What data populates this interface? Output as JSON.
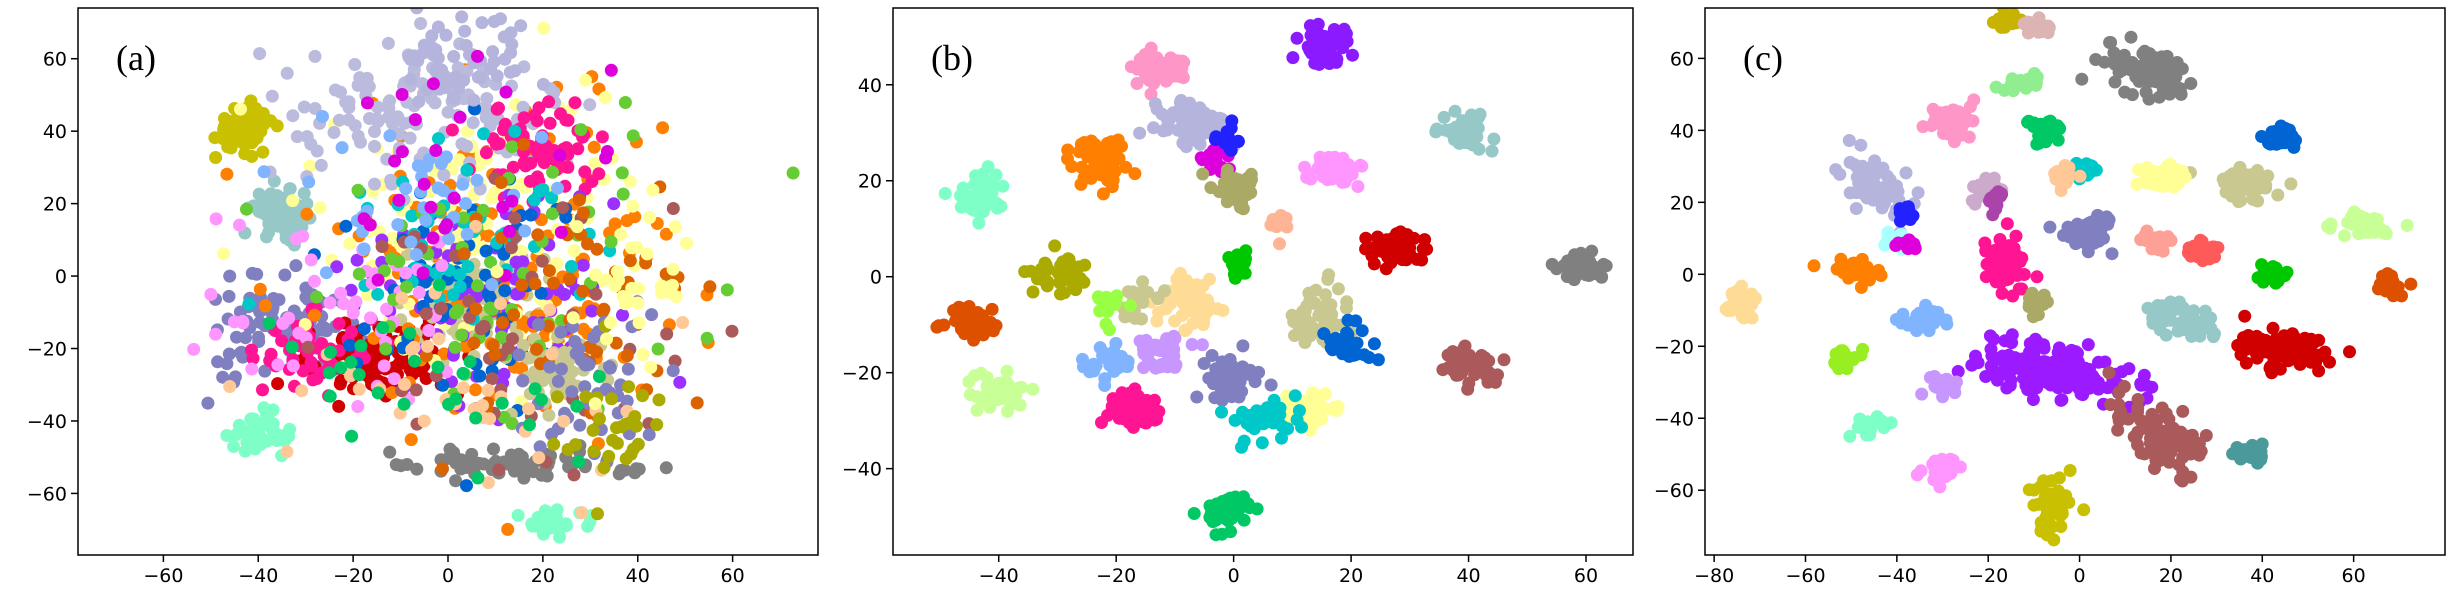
{
  "chart_data": [
    {
      "type": "scatter",
      "panel_label": "(a)",
      "title": "",
      "xlabel": "",
      "ylabel": "",
      "xlim": [
        -78,
        78
      ],
      "ylim": [
        -77,
        74
      ],
      "xticks": [
        -60,
        -40,
        -20,
        0,
        20,
        40,
        60
      ],
      "yticks": [
        -60,
        -40,
        -20,
        0,
        20,
        40,
        60
      ],
      "grid": false,
      "legend": "none",
      "clusters": [
        {
          "color": "#c8c000",
          "cx": -43,
          "cy": 41,
          "sx": 3,
          "sy": 3,
          "n": 90
        },
        {
          "color": "#96c8c8",
          "cx": -35,
          "cy": 18,
          "sx": 3,
          "sy": 3,
          "n": 70
        },
        {
          "color": "#7fffc8",
          "cx": -40,
          "cy": -44,
          "sx": 3,
          "sy": 3,
          "n": 40
        },
        {
          "color": "#8080c0",
          "cx": -35,
          "cy": -15,
          "sx": 8,
          "sy": 7,
          "n": 90
        },
        {
          "color": "#d00000",
          "cx": -15,
          "cy": -23,
          "sx": 9,
          "sy": 5,
          "n": 100
        },
        {
          "color": "#ff1493",
          "cx": -28,
          "cy": -20,
          "sx": 6,
          "sy": 5,
          "n": 50
        },
        {
          "color": "#c8c890",
          "cx": 5,
          "cy": -7,
          "sx": 7,
          "sy": 7,
          "n": 100
        },
        {
          "color": "#ff7f00",
          "cx": 12,
          "cy": 5,
          "sx": 20,
          "sy": 25,
          "n": 150
        },
        {
          "color": "#ffff96",
          "cx": 10,
          "cy": 15,
          "sx": 18,
          "sy": 20,
          "n": 130
        },
        {
          "color": "#bbbbdd",
          "cx": -5,
          "cy": 45,
          "sx": 14,
          "sy": 10,
          "n": 130
        },
        {
          "color": "#ff1493",
          "cx": 20,
          "cy": 35,
          "sx": 7,
          "sy": 6,
          "n": 70
        },
        {
          "color": "#808080",
          "cx": 15,
          "cy": -52,
          "sx": 12,
          "sy": 2,
          "n": 80
        },
        {
          "color": "#7fffc8",
          "cx": 22,
          "cy": -68,
          "sx": 5,
          "sy": 2,
          "n": 30
        },
        {
          "color": "#9b30ff",
          "cx": 10,
          "cy": -5,
          "sx": 16,
          "sy": 16,
          "n": 80
        },
        {
          "color": "#0064d2",
          "cx": 0,
          "cy": 0,
          "sx": 14,
          "sy": 18,
          "n": 70
        },
        {
          "color": "#b4b4dc",
          "cx": 5,
          "cy": 60,
          "sx": 8,
          "sy": 6,
          "n": 60
        },
        {
          "color": "#c8c890",
          "cx": 22,
          "cy": -25,
          "sx": 6,
          "sy": 5,
          "n": 60
        },
        {
          "color": "#00c8c8",
          "cx": 5,
          "cy": 10,
          "sx": 15,
          "sy": 15,
          "n": 50
        },
        {
          "color": "#ff96ff",
          "cx": -20,
          "cy": -10,
          "sx": 15,
          "sy": 15,
          "n": 50
        },
        {
          "color": "#66cc33",
          "cx": 10,
          "cy": 0,
          "sx": 20,
          "sy": 20,
          "n": 60
        },
        {
          "color": "#aa5a5a",
          "cx": 15,
          "cy": -15,
          "sx": 18,
          "sy": 18,
          "n": 50
        },
        {
          "color": "#dc6400",
          "cx": 25,
          "cy": -10,
          "sx": 14,
          "sy": 16,
          "n": 60
        },
        {
          "color": "#8080c0",
          "cx": 30,
          "cy": -30,
          "sx": 8,
          "sy": 12,
          "n": 50
        },
        {
          "color": "#ffc896",
          "cx": 0,
          "cy": -25,
          "sx": 20,
          "sy": 15,
          "n": 40
        },
        {
          "color": "#80b4ff",
          "cx": -10,
          "cy": 20,
          "sx": 15,
          "sy": 12,
          "n": 40
        },
        {
          "color": "#dd00dd",
          "cx": 5,
          "cy": 30,
          "sx": 15,
          "sy": 15,
          "n": 30
        },
        {
          "color": "#00c864",
          "cx": -10,
          "cy": -30,
          "sx": 15,
          "sy": 10,
          "n": 30
        },
        {
          "color": "#aaaa00",
          "cx": 35,
          "cy": -40,
          "sx": 6,
          "sy": 8,
          "n": 30
        },
        {
          "color": "#ffff96",
          "cx": 40,
          "cy": -5,
          "sx": 8,
          "sy": 12,
          "n": 30
        }
      ]
    },
    {
      "type": "scatter",
      "panel_label": "(b)",
      "title": "",
      "xlabel": "",
      "ylabel": "",
      "xlim": [
        -58,
        68
      ],
      "ylim": [
        -58,
        56
      ],
      "xticks": [
        -40,
        -20,
        0,
        20,
        40,
        60
      ],
      "yticks": [
        -40,
        -20,
        0,
        20,
        40
      ],
      "grid": false,
      "legend": "none",
      "clusters": [
        {
          "color": "#8b1aff",
          "cx": 16,
          "cy": 48,
          "sx": 1.8,
          "sy": 1.8,
          "n": 60
        },
        {
          "color": "#ff96c8",
          "cx": -12,
          "cy": 43,
          "sx": 2.4,
          "sy": 1.8,
          "n": 60
        },
        {
          "color": "#96c8c8",
          "cx": 39,
          "cy": 30,
          "sx": 2,
          "sy": 2,
          "n": 50
        },
        {
          "color": "#b4b4dc",
          "cx": -7,
          "cy": 32,
          "sx": 3.5,
          "sy": 2.2,
          "n": 70
        },
        {
          "color": "#ff96ff",
          "cx": 17,
          "cy": 22,
          "sx": 2.2,
          "sy": 1.6,
          "n": 50
        },
        {
          "color": "#ff7f00",
          "cx": -23,
          "cy": 24,
          "sx": 2.5,
          "sy": 2.5,
          "n": 60
        },
        {
          "color": "#7fffc8",
          "cx": -44,
          "cy": 17,
          "sx": 2.2,
          "sy": 2.2,
          "n": 50
        },
        {
          "color": "#d00000",
          "cx": 28,
          "cy": 6,
          "sx": 2.5,
          "sy": 1.6,
          "n": 50
        },
        {
          "color": "#808080",
          "cx": 59,
          "cy": 2,
          "sx": 2.2,
          "sy": 1.5,
          "n": 50
        },
        {
          "color": "#aaaa00",
          "cx": -30,
          "cy": 1,
          "sx": 2.2,
          "sy": 2,
          "n": 50
        },
        {
          "color": "#ffdc96",
          "cx": -7,
          "cy": -5,
          "sx": 2.5,
          "sy": 2.5,
          "n": 60
        },
        {
          "color": "#c8c890",
          "cx": 15,
          "cy": -9,
          "sx": 2.5,
          "sy": 3,
          "n": 60
        },
        {
          "color": "#dc5000",
          "cx": -45,
          "cy": -10,
          "sx": 2.2,
          "sy": 1.8,
          "n": 50
        },
        {
          "color": "#aa5a5a",
          "cx": 40,
          "cy": -18,
          "sx": 2.2,
          "sy": 2,
          "n": 50
        },
        {
          "color": "#0064d2",
          "cx": 19,
          "cy": -14,
          "sx": 2,
          "sy": 1.8,
          "n": 40
        },
        {
          "color": "#8080c0",
          "cx": -1,
          "cy": -21,
          "sx": 2.5,
          "sy": 2.5,
          "n": 50
        },
        {
          "color": "#c8ff96",
          "cx": -40,
          "cy": -24,
          "sx": 2.2,
          "sy": 2,
          "n": 50
        },
        {
          "color": "#ff1493",
          "cx": -17,
          "cy": -28,
          "sx": 2.2,
          "sy": 2,
          "n": 50
        },
        {
          "color": "#ffff96",
          "cx": 13,
          "cy": -28,
          "sx": 2.5,
          "sy": 2,
          "n": 50
        },
        {
          "color": "#00c8c8",
          "cx": 6,
          "cy": -30,
          "sx": 3,
          "sy": 2,
          "n": 40
        },
        {
          "color": "#00c864",
          "cx": -1,
          "cy": -49,
          "sx": 2.2,
          "sy": 1.8,
          "n": 50
        },
        {
          "color": "#c896ff",
          "cx": -12,
          "cy": -16,
          "sx": 2.5,
          "sy": 2,
          "n": 40
        },
        {
          "color": "#80b4ff",
          "cx": -22,
          "cy": -18,
          "sx": 2,
          "sy": 1.5,
          "n": 30
        },
        {
          "color": "#dd00dd",
          "cx": -3,
          "cy": 25,
          "sx": 1.5,
          "sy": 1.5,
          "n": 20
        },
        {
          "color": "#00c800",
          "cx": 1,
          "cy": 3,
          "sx": 1.2,
          "sy": 1.2,
          "n": 20
        },
        {
          "color": "#aaaa66",
          "cx": 0,
          "cy": 18,
          "sx": 2,
          "sy": 2,
          "n": 30
        },
        {
          "color": "#ffb496",
          "cx": 8,
          "cy": 11,
          "sx": 1.2,
          "sy": 1.2,
          "n": 15
        },
        {
          "color": "#2222ff",
          "cx": -2,
          "cy": 29,
          "sx": 1.5,
          "sy": 1.5,
          "n": 15
        },
        {
          "color": "#c8c890",
          "cx": -16,
          "cy": -5,
          "sx": 2,
          "sy": 2,
          "n": 20
        },
        {
          "color": "#99ff44",
          "cx": -22,
          "cy": -6,
          "sx": 1.5,
          "sy": 1.5,
          "n": 15
        }
      ]
    },
    {
      "type": "scatter",
      "panel_label": "(c)",
      "title": "",
      "xlabel": "",
      "ylabel": "",
      "xlim": [
        -82,
        80
      ],
      "ylim": [
        -78,
        74
      ],
      "xticks": [
        -80,
        -60,
        -40,
        -20,
        0,
        20,
        40,
        60
      ],
      "yticks": [
        -60,
        -40,
        -20,
        0,
        20,
        40,
        60
      ],
      "grid": false,
      "legend": "none",
      "clusters": [
        {
          "color": "#808080",
          "cx": 14,
          "cy": 57,
          "sx": 5,
          "sy": 3,
          "rot": -25,
          "n": 100
        },
        {
          "color": "#c8b400",
          "cx": -16,
          "cy": 70,
          "sx": 1.5,
          "sy": 1.2,
          "n": 20
        },
        {
          "color": "#dcb4b4",
          "cx": -9,
          "cy": 69,
          "sx": 1.5,
          "sy": 1.2,
          "n": 20
        },
        {
          "color": "#90ee90",
          "cx": -13,
          "cy": 53,
          "sx": 2,
          "sy": 1.2,
          "n": 30
        },
        {
          "color": "#ff96c8",
          "cx": -28,
          "cy": 43,
          "sx": 2.5,
          "sy": 2.5,
          "n": 50
        },
        {
          "color": "#00c864",
          "cx": -7,
          "cy": 40,
          "sx": 2,
          "sy": 1.6,
          "n": 35
        },
        {
          "color": "#0064d2",
          "cx": 44,
          "cy": 38,
          "sx": 2,
          "sy": 1.5,
          "n": 35
        },
        {
          "color": "#b4b4dc",
          "cx": -45,
          "cy": 24,
          "sx": 3,
          "sy": 5,
          "rot": 30,
          "n": 70
        },
        {
          "color": "#c8c890",
          "cx": 36,
          "cy": 25,
          "sx": 3.5,
          "sy": 2,
          "rot": -10,
          "n": 55
        },
        {
          "color": "#ffff96",
          "cx": 18,
          "cy": 27,
          "sx": 2.5,
          "sy": 1.8,
          "n": 40
        },
        {
          "color": "#c8ff96",
          "cx": 62,
          "cy": 13,
          "sx": 3,
          "sy": 1.8,
          "n": 40
        },
        {
          "color": "#ff1493",
          "cx": -16,
          "cy": 3,
          "sx": 2.5,
          "sy": 4,
          "n": 60
        },
        {
          "color": "#8080c0",
          "cx": 2,
          "cy": 12,
          "sx": 2.5,
          "sy": 2,
          "n": 45
        },
        {
          "color": "#ffa096",
          "cx": 16,
          "cy": 9,
          "sx": 1.6,
          "sy": 1.6,
          "n": 25
        },
        {
          "color": "#ff5a5a",
          "cx": 27,
          "cy": 6,
          "sx": 2,
          "sy": 1.6,
          "n": 30
        },
        {
          "color": "#ff7f00",
          "cx": -48,
          "cy": 1,
          "sx": 2.6,
          "sy": 1.8,
          "n": 40
        },
        {
          "color": "#00c800",
          "cx": 42,
          "cy": 0,
          "sx": 1.6,
          "sy": 1.4,
          "n": 25
        },
        {
          "color": "#dc5000",
          "cx": 68,
          "cy": -3,
          "sx": 1.5,
          "sy": 1.4,
          "n": 25
        },
        {
          "color": "#ffdc96",
          "cx": -74,
          "cy": -8,
          "sx": 2,
          "sy": 2,
          "n": 30
        },
        {
          "color": "#80b4ff",
          "cx": -34,
          "cy": -12,
          "sx": 2.5,
          "sy": 1.8,
          "n": 35
        },
        {
          "color": "#96c8c8",
          "cx": 22,
          "cy": -13,
          "sx": 4,
          "sy": 2.2,
          "rot": -15,
          "n": 55
        },
        {
          "color": "#d00000",
          "cx": 44,
          "cy": -21,
          "sx": 5,
          "sy": 2.8,
          "rot": -8,
          "n": 80
        },
        {
          "color": "#99ee22",
          "cx": -52,
          "cy": -23,
          "sx": 1.8,
          "sy": 1.4,
          "n": 25
        },
        {
          "color": "#9b1aff",
          "cx": -5,
          "cy": -27,
          "sx": 9,
          "sy": 3.5,
          "rot": -18,
          "n": 160
        },
        {
          "color": "#c896ff",
          "cx": -30,
          "cy": -31,
          "sx": 2,
          "sy": 1.6,
          "n": 30
        },
        {
          "color": "#aa5a5a",
          "cx": 17,
          "cy": -45,
          "sx": 3.5,
          "sy": 6,
          "rot": 40,
          "n": 90
        },
        {
          "color": "#7fffc8",
          "cx": -46,
          "cy": -42,
          "sx": 1.6,
          "sy": 1.8,
          "n": 25
        },
        {
          "color": "#4a9a9a",
          "cx": 38,
          "cy": -50,
          "sx": 1.8,
          "sy": 1.2,
          "n": 25
        },
        {
          "color": "#ff96ff",
          "cx": -30,
          "cy": -54,
          "sx": 2,
          "sy": 1.8,
          "n": 30
        },
        {
          "color": "#c8c000",
          "cx": -6,
          "cy": -64,
          "sx": 2.3,
          "sy": 3.5,
          "n": 55
        },
        {
          "color": "#00c8c8",
          "cx": 1,
          "cy": 29,
          "sx": 1.6,
          "sy": 1.4,
          "n": 25
        },
        {
          "color": "#ffc896",
          "cx": -4,
          "cy": 27,
          "sx": 1.6,
          "sy": 1.6,
          "n": 20
        },
        {
          "color": "#aaaa66",
          "cx": -9,
          "cy": -8,
          "sx": 1,
          "sy": 2,
          "n": 15
        },
        {
          "color": "#ccaacc",
          "cx": -20,
          "cy": 24,
          "sx": 1.8,
          "sy": 1.6,
          "n": 25
        },
        {
          "color": "#2222ff",
          "cx": -38,
          "cy": 17,
          "sx": 1.4,
          "sy": 1.2,
          "n": 15
        },
        {
          "color": "#aaffff",
          "cx": -40,
          "cy": 10,
          "sx": 2,
          "sy": 1.5,
          "n": 20
        },
        {
          "color": "#aa44aa",
          "cx": -18,
          "cy": 20,
          "sx": 1.5,
          "sy": 1.5,
          "n": 15
        },
        {
          "color": "#dd00dd",
          "cx": -38,
          "cy": 8,
          "sx": 1.2,
          "sy": 1,
          "n": 12
        }
      ]
    }
  ]
}
